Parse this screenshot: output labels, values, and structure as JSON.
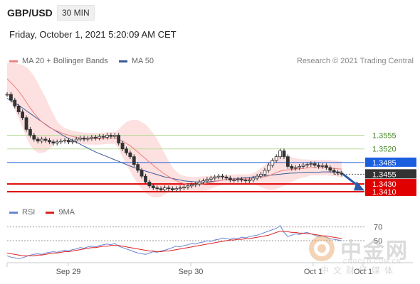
{
  "header": {
    "symbol": "GBP/USD",
    "interval": "30 MIN",
    "datetime": "Friday, October 1, 2021 5:20:09 AM CET"
  },
  "legend": {
    "items": [
      {
        "label": "MA 20 + Bollinger Bands",
        "color": "#f08080"
      },
      {
        "label": "MA 50",
        "color": "#3a5a95"
      }
    ],
    "credit": "Research © 2021 Trading Central"
  },
  "rsi_legend": {
    "items": [
      {
        "label": "RSI",
        "color": "#6a86d6"
      },
      {
        "label": "9MA",
        "color": "#e02020"
      }
    ]
  },
  "watermark": {
    "name": "中金网",
    "url": "CNGOLD.COM.CN",
    "tagline": "中文财经媒体"
  },
  "chart_data": {
    "type": "line",
    "title": "GBP/USD",
    "ylim": [
      1.337,
      1.372
    ],
    "x_ticks": [
      "Sep 29",
      "Sep 30",
      "Oct 1",
      "Oct 1"
    ],
    "colors": {
      "ma20": "#f08080",
      "band_fill": "#fde0e0",
      "ma50": "#3a5a95",
      "up": "#333333",
      "down": "#444444",
      "green_level": "#b9dc9a",
      "red_level": "#e00000",
      "blue_level": "#1a5fe0",
      "current": "#333333",
      "forecast": "#2a5aa8"
    },
    "levels": [
      {
        "value": 1.3555,
        "label": "1.3555",
        "kind": "green"
      },
      {
        "value": 1.352,
        "label": "1.3520",
        "kind": "green"
      },
      {
        "value": 1.3485,
        "label": "1.3485",
        "kind": "blue"
      },
      {
        "value": 1.3455,
        "label": "1.3455",
        "kind": "current"
      },
      {
        "value": 1.343,
        "label": "1.3430",
        "kind": "red"
      },
      {
        "value": 1.341,
        "label": "1.3410",
        "kind": "red"
      }
    ],
    "price": [
      1.366,
      1.3645,
      1.363,
      1.3615,
      1.36,
      1.357,
      1.3555,
      1.3545,
      1.354,
      1.3545,
      1.3542,
      1.3538,
      1.3535,
      1.3538,
      1.354,
      1.3542,
      1.3538,
      1.354,
      1.3545,
      1.3548,
      1.3545,
      1.3547,
      1.355,
      1.3548,
      1.3552,
      1.355,
      1.3555,
      1.3552,
      1.3555,
      1.3535,
      1.352,
      1.351,
      1.35,
      1.348,
      1.3465,
      1.345,
      1.3435,
      1.3425,
      1.342,
      1.3418,
      1.3415,
      1.342,
      1.3418,
      1.3415,
      1.3418,
      1.342,
      1.3422,
      1.3425,
      1.3428,
      1.343,
      1.3435,
      1.3438,
      1.3442,
      1.3445,
      1.3448,
      1.345,
      1.3448,
      1.3445,
      1.344,
      1.344,
      1.3442,
      1.344,
      1.3438,
      1.344,
      1.3445,
      1.345,
      1.3455,
      1.3465,
      1.3478,
      1.349,
      1.35,
      1.3515,
      1.35,
      1.3475,
      1.347,
      1.3472,
      1.3475,
      1.3478,
      1.348,
      1.3482,
      1.3478,
      1.3475,
      1.3477,
      1.3472,
      1.3465,
      1.346,
      1.3458,
      1.3455
    ],
    "ma20": [
      1.37,
      1.369,
      1.368,
      1.3668,
      1.3655,
      1.364,
      1.3625,
      1.3612,
      1.36,
      1.359,
      1.3582,
      1.3575,
      1.357,
      1.3566,
      1.3562,
      1.3558,
      1.3555,
      1.3552,
      1.355,
      1.3548,
      1.3547,
      1.3546,
      1.3546,
      1.3546,
      1.3546,
      1.3547,
      1.3548,
      1.3548,
      1.3548,
      1.3545,
      1.354,
      1.3534,
      1.3528,
      1.352,
      1.3512,
      1.3503,
      1.3495,
      1.3486,
      1.3478,
      1.347,
      1.3462,
      1.3455,
      1.3449,
      1.3443,
      1.3438,
      1.3434,
      1.3431,
      1.3429,
      1.3428,
      1.3428,
      1.3429,
      1.343,
      1.3432,
      1.3434,
      1.3436,
      1.3438,
      1.344,
      1.3441,
      1.3442,
      1.3442,
      1.3443,
      1.3443,
      1.3443,
      1.3443,
      1.3444,
      1.3445,
      1.3446,
      1.3448,
      1.3451,
      1.3455,
      1.3459,
      1.3463,
      1.3465,
      1.3466,
      1.3467,
      1.3468,
      1.3469,
      1.347,
      1.3471,
      1.3472,
      1.3472,
      1.3472,
      1.3472,
      1.3472,
      1.3471,
      1.347,
      1.3469,
      1.3468
    ],
    "band_width": [
      0.004,
      0.005,
      0.006,
      0.007,
      0.008,
      0.009,
      0.0095,
      0.0095,
      0.009,
      0.008,
      0.007,
      0.0055,
      0.004,
      0.0025,
      0.0018,
      0.0015,
      0.0015,
      0.0015,
      0.0015,
      0.0015,
      0.0015,
      0.0015,
      0.0015,
      0.0015,
      0.0015,
      0.0015,
      0.0015,
      0.0015,
      0.0015,
      0.0025,
      0.004,
      0.0055,
      0.0065,
      0.0075,
      0.0082,
      0.0086,
      0.0088,
      0.0086,
      0.0082,
      0.0075,
      0.0065,
      0.0052,
      0.004,
      0.003,
      0.0024,
      0.002,
      0.002,
      0.002,
      0.002,
      0.002,
      0.002,
      0.002,
      0.0018,
      0.0016,
      0.0014,
      0.0013,
      0.0012,
      0.0012,
      0.0012,
      0.0012,
      0.0012,
      0.0012,
      0.0012,
      0.0012,
      0.0014,
      0.0018,
      0.0024,
      0.003,
      0.0036,
      0.004,
      0.0042,
      0.0042,
      0.004,
      0.0036,
      0.0032,
      0.0028,
      0.0025,
      0.0023,
      0.0022,
      0.002,
      0.002,
      0.002,
      0.002,
      0.002,
      0.002,
      0.002,
      0.002,
      0.002
    ],
    "ma50": [
      1.365,
      1.3644,
      1.3638,
      1.3632,
      1.3625,
      1.3618,
      1.3611,
      1.3604,
      1.3597,
      1.359,
      1.3583,
      1.3576,
      1.357,
      1.3564,
      1.3558,
      1.3552,
      1.3547,
      1.3542,
      1.3537,
      1.3532,
      1.3527,
      1.3522,
      1.3517,
      1.3512,
      1.3508,
      1.3504,
      1.35,
      1.3496,
      1.3492,
      1.3488,
      1.3484,
      1.348,
      1.3476,
      1.3472,
      1.3469,
      1.3466,
      1.3463,
      1.346,
      1.3457,
      1.3454,
      1.3451,
      1.3448,
      1.3446,
      1.3444,
      1.3442,
      1.344,
      1.3438,
      1.3437,
      1.3436,
      1.3435,
      1.3435,
      1.3435,
      1.3435,
      1.3436,
      1.3437,
      1.3438,
      1.344,
      1.3441,
      1.3442,
      1.3443,
      1.3444,
      1.3445,
      1.3446,
      1.3447,
      1.3448,
      1.3449,
      1.345,
      1.3451,
      1.3452,
      1.3453,
      1.3454,
      1.3455,
      1.3456,
      1.3457,
      1.3458,
      1.3458,
      1.3459,
      1.3459,
      1.346,
      1.346,
      1.346,
      1.346,
      1.3461,
      1.3461,
      1.3461,
      1.3461,
      1.3461,
      1.3461
    ],
    "forecast": [
      1.3455,
      1.3415
    ],
    "rsi": {
      "ylim": [
        20,
        80
      ],
      "ticks": [
        {
          "value": 70,
          "label": "70"
        },
        {
          "value": 50,
          "label": "50"
        }
      ],
      "rsi": [
        28,
        26,
        25,
        24,
        25,
        27,
        29,
        30,
        31,
        30,
        32,
        33,
        34,
        33,
        35,
        36,
        35,
        37,
        38,
        40,
        39,
        41,
        42,
        41,
        43,
        44,
        45,
        44,
        46,
        42,
        40,
        38,
        36,
        34,
        32,
        31,
        30,
        32,
        34,
        33,
        35,
        36,
        38,
        40,
        42,
        41,
        43,
        44,
        46,
        45,
        47,
        48,
        50,
        49,
        51,
        52,
        54,
        53,
        52,
        54,
        53,
        55,
        54,
        56,
        57,
        58,
        60,
        62,
        64,
        66,
        68,
        72,
        62,
        56,
        58,
        60,
        59,
        61,
        62,
        60,
        58,
        56,
        57,
        55,
        53,
        52,
        51,
        50
      ],
      "ma9": [
        32,
        31,
        30,
        29,
        28,
        28,
        28,
        28,
        29,
        29,
        30,
        31,
        32,
        32,
        33,
        34,
        34,
        35,
        36,
        37,
        38,
        39,
        40,
        40,
        41,
        42,
        42,
        43,
        43,
        43,
        42,
        41,
        40,
        39,
        38,
        37,
        36,
        35,
        35,
        34,
        34,
        35,
        35,
        36,
        37,
        38,
        39,
        40,
        41,
        42,
        43,
        44,
        45,
        46,
        47,
        48,
        49,
        50,
        51,
        51,
        52,
        52,
        53,
        53,
        54,
        55,
        56,
        57,
        58,
        60,
        62,
        64,
        64,
        63,
        62,
        62,
        61,
        61,
        60,
        60,
        59,
        58,
        57,
        57,
        56,
        55,
        54,
        53
      ]
    }
  }
}
